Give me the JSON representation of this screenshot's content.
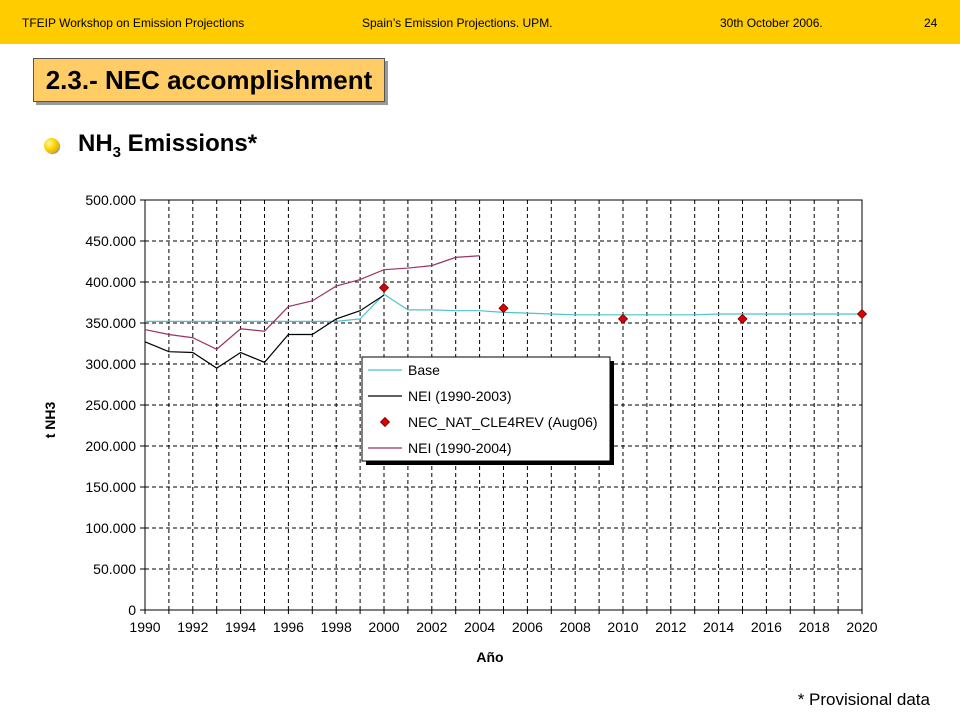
{
  "header": {
    "left": "TFEIP Workshop on Emission Projections",
    "center": "Spain’s Emission Projections. UPM.",
    "date": "30th October  2006.",
    "page": "24"
  },
  "title": "2.3.- NEC accomplishment",
  "bullet": {
    "text": "NH",
    "sub": "3",
    "suffix": " Emissions*"
  },
  "footnote": "* Provisional data",
  "chart_data": {
    "type": "line",
    "xlabel": "Año",
    "ylabel": "t NH3",
    "xlim": [
      1990,
      2020
    ],
    "ylim": [
      0,
      500000
    ],
    "x_ticks": [
      "1990",
      "1992",
      "1994",
      "1996",
      "1998",
      "2000",
      "2002",
      "2004",
      "2006",
      "2008",
      "2010",
      "2012",
      "2014",
      "2016",
      "2018",
      "2020"
    ],
    "y_ticks": [
      "0",
      "50.000",
      "100.000",
      "150.000",
      "200.000",
      "250.000",
      "300.000",
      "350.000",
      "400.000",
      "450.000",
      "500.000"
    ],
    "grid": true,
    "legend_position": "center-left",
    "series": [
      {
        "name": "Base",
        "kind": "line",
        "color": "#4fc3c8",
        "x": [
          1990,
          1991,
          1992,
          1993,
          1994,
          1995,
          1996,
          1997,
          1998,
          1999,
          2000,
          2001,
          2002,
          2003,
          2004,
          2005,
          2006,
          2007,
          2008,
          2009,
          2010,
          2011,
          2012,
          2013,
          2014,
          2015,
          2016,
          2017,
          2018,
          2019,
          2020
        ],
        "y": [
          352000,
          352000,
          352000,
          352000,
          352000,
          352000,
          352000,
          352000,
          352000,
          355000,
          385000,
          366000,
          366000,
          365000,
          365000,
          363000,
          362000,
          361000,
          360000,
          360000,
          360000,
          360000,
          360000,
          360000,
          361000,
          361000,
          361000,
          361000,
          361000,
          361000,
          361000
        ]
      },
      {
        "name": "NEI (1990-2003)",
        "kind": "line",
        "color": "#000000",
        "x": [
          1990,
          1991,
          1992,
          1993,
          1994,
          1995,
          1996,
          1997,
          1998,
          1999,
          2000
        ],
        "y": [
          327000,
          315000,
          314000,
          295000,
          314000,
          302000,
          336000,
          336000,
          355000,
          365000,
          384000
        ]
      },
      {
        "name": "NEC_NAT_CLE4REV (Aug06)",
        "kind": "scatter",
        "color": "#e00000",
        "x": [
          2000,
          2005,
          2010,
          2015,
          2020
        ],
        "y": [
          393000,
          368000,
          355000,
          355000,
          361000
        ]
      },
      {
        "name": "NEI (1990-2004)",
        "kind": "line",
        "color": "#993366",
        "x": [
          1990,
          1991,
          1992,
          1993,
          1994,
          1995,
          1996,
          1997,
          1998,
          1999,
          2000,
          2001,
          2002,
          2003,
          2004
        ],
        "y": [
          342000,
          336000,
          332000,
          318000,
          343000,
          340000,
          370000,
          377000,
          395000,
          403000,
          415000,
          417000,
          420000,
          430000,
          432000
        ]
      }
    ]
  }
}
